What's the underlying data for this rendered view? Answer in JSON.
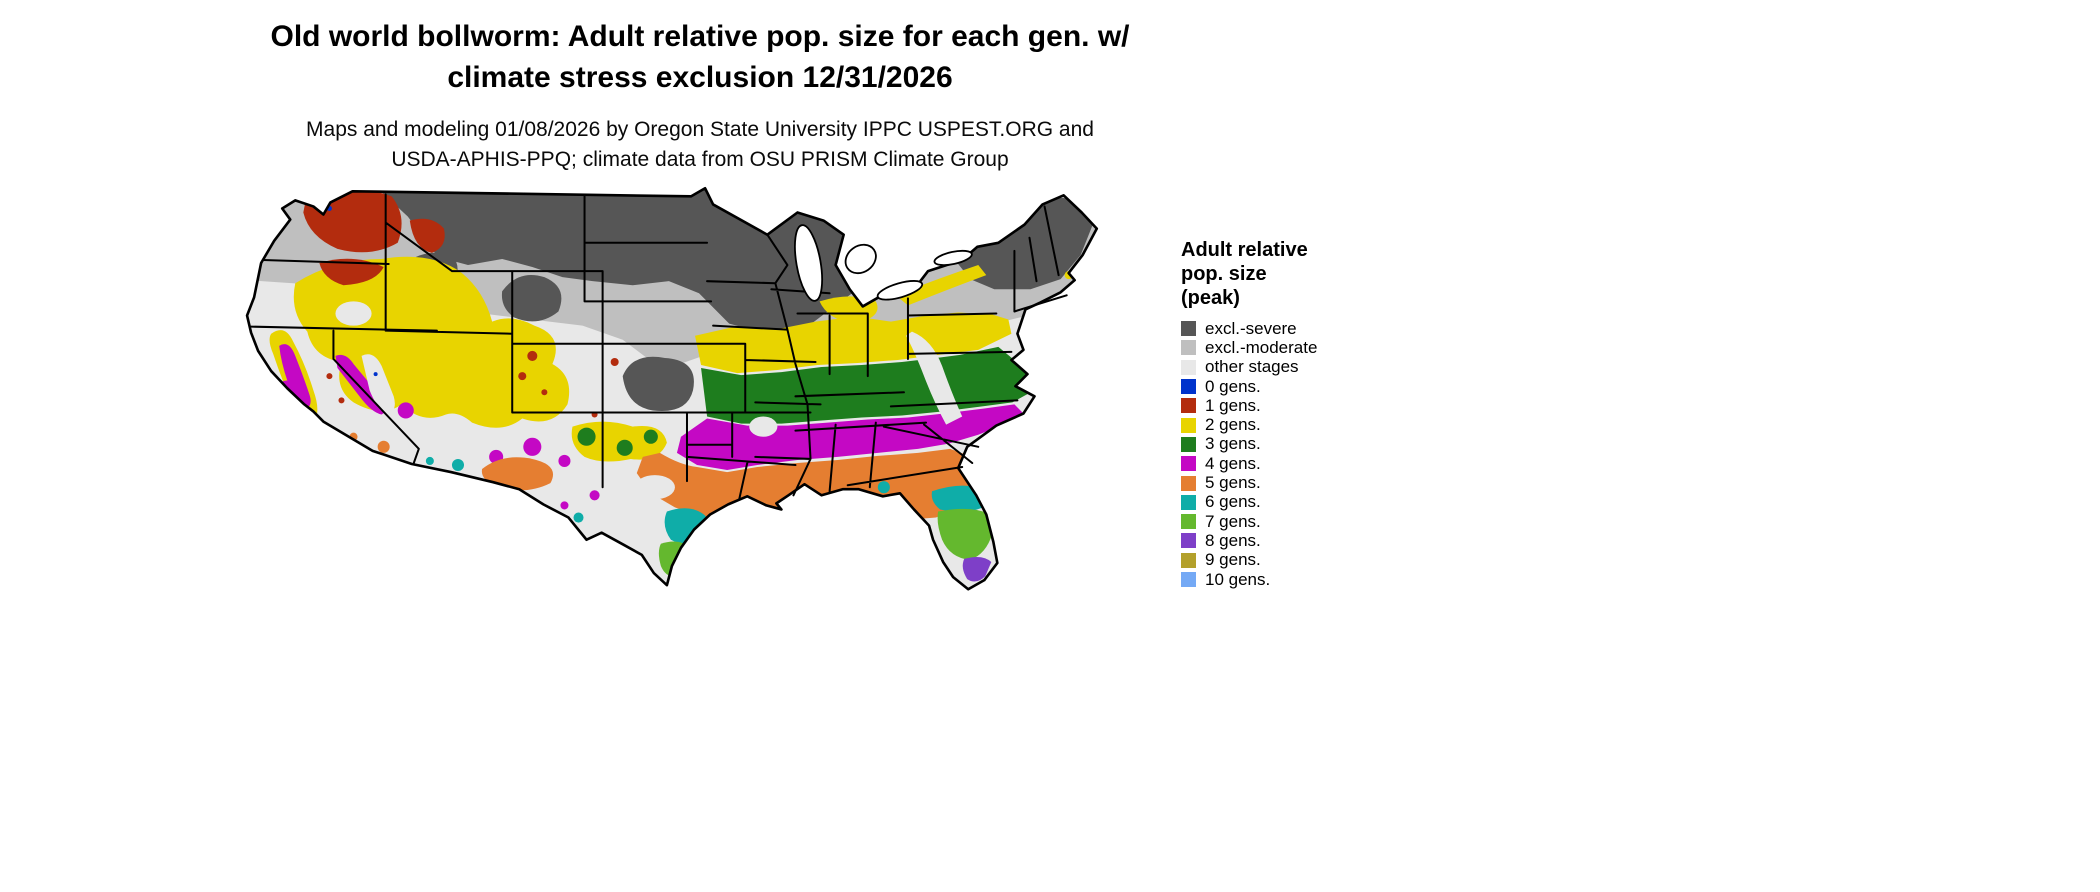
{
  "title": {
    "line1": "Old world bollworm: Adult relative pop. size for each gen. w/",
    "line2": "climate stress exclusion 12/31/2026"
  },
  "subtitle": {
    "line1": "Maps and modeling 01/08/2026 by Oregon State University IPPC USPEST.ORG and",
    "line2": "USDA-APHIS-PPQ; climate data from OSU PRISM Climate Group"
  },
  "legend": {
    "title_line1": "Adult relative",
    "title_line2": "pop. size",
    "title_line3": "(peak)",
    "items": [
      {
        "key": "excl_severe",
        "label": "excl.-severe",
        "color": "#565656"
      },
      {
        "key": "excl_moderate",
        "label": "excl.-moderate",
        "color": "#bfbfbf"
      },
      {
        "key": "other",
        "label": "other stages",
        "color": "#e8e8e8"
      },
      {
        "key": "g0",
        "label": "0 gens.",
        "color": "#0033cc"
      },
      {
        "key": "g1",
        "label": "1 gens.",
        "color": "#b32c0e"
      },
      {
        "key": "g2",
        "label": "2 gens.",
        "color": "#e8d400"
      },
      {
        "key": "g3",
        "label": "3 gens.",
        "color": "#1e7d1e"
      },
      {
        "key": "g4",
        "label": "4 gens.",
        "color": "#c408c4"
      },
      {
        "key": "g5",
        "label": "5 gens.",
        "color": "#e57e31"
      },
      {
        "key": "g6",
        "label": "6 gens.",
        "color": "#0fada8"
      },
      {
        "key": "g7",
        "label": "7 gens.",
        "color": "#64b82e"
      },
      {
        "key": "g8",
        "label": "8 gens.",
        "color": "#7e3fc8"
      },
      {
        "key": "g9",
        "label": "9 gens.",
        "color": "#b3a02b"
      },
      {
        "key": "g10",
        "label": "10 gens.",
        "color": "#74a9f5"
      }
    ]
  }
}
